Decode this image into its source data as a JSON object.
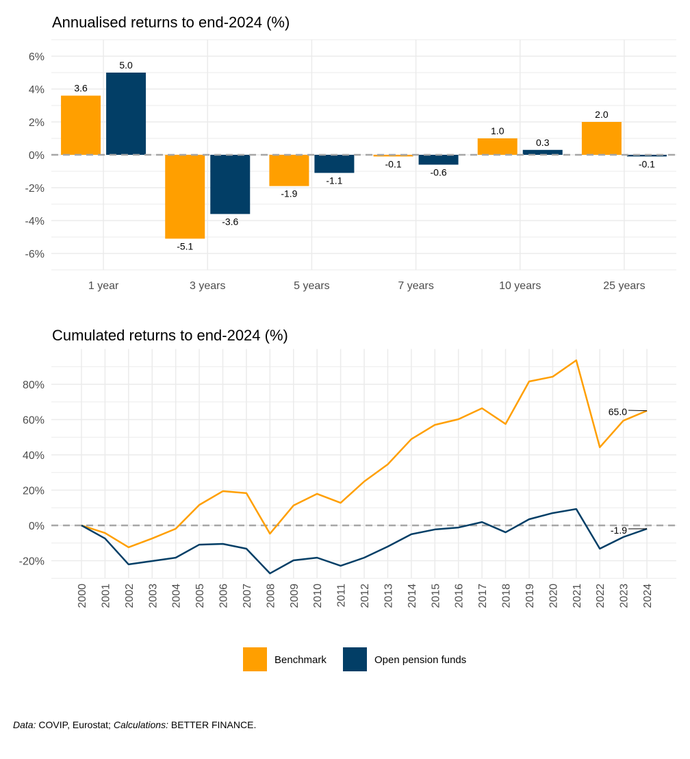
{
  "colors": {
    "benchmark": "#FF9F00",
    "funds": "#023E66",
    "grid": "#EBEBEB",
    "zero": "#A6A6A6"
  },
  "chart_data": [
    {
      "type": "bar",
      "title": "Annualised returns to end-2024 (%)",
      "categories": [
        "1 year",
        "3 years",
        "5 years",
        "7 years",
        "10 years",
        "25 years"
      ],
      "series": [
        {
          "name": "Benchmark",
          "values": [
            3.6,
            -5.1,
            -1.9,
            -0.1,
            1.0,
            2.0
          ]
        },
        {
          "name": "Open pension funds",
          "values": [
            5.0,
            -3.6,
            -1.1,
            -0.6,
            0.3,
            -0.1
          ]
        }
      ],
      "data_labels": [
        [
          "3.6",
          "-5.1",
          "-1.9",
          "-0.1",
          "1.0",
          "2.0"
        ],
        [
          "5.0",
          "-3.6",
          "-1.1",
          "-0.6",
          "0.3",
          "-0.1"
        ]
      ],
      "yticks": [
        "-6%",
        "-4%",
        "-2%",
        "0%",
        "2%",
        "4%",
        "6%"
      ],
      "ytick_values": [
        -6,
        -4,
        -2,
        0,
        2,
        4,
        6
      ],
      "ylim": [
        -7,
        7
      ],
      "grid": true
    },
    {
      "type": "line",
      "title": "Cumulated returns to end-2024 (%)",
      "x": [
        "2000",
        "2001",
        "2002",
        "2003",
        "2004",
        "2005",
        "2006",
        "2007",
        "2008",
        "2009",
        "2010",
        "2011",
        "2012",
        "2013",
        "2014",
        "2015",
        "2016",
        "2017",
        "2018",
        "2019",
        "2020",
        "2021",
        "2022",
        "2023",
        "2024"
      ],
      "series": [
        {
          "name": "Benchmark",
          "values": [
            0,
            -4.3,
            -12.4,
            -7.4,
            -1.9,
            11.6,
            19.4,
            18.3,
            -4.7,
            11.3,
            17.9,
            12.8,
            24.9,
            34.6,
            48.9,
            57.0,
            60.2,
            66.4,
            57.5,
            81.6,
            84.3,
            93.6,
            44.3,
            59.4,
            65.0
          ]
        },
        {
          "name": "Open pension funds",
          "values": [
            0,
            -7.4,
            -22.1,
            -20.2,
            -18.3,
            -10.9,
            -10.5,
            -13.2,
            -27.2,
            -19.8,
            -18.3,
            -22.9,
            -18.3,
            -12.0,
            -5.0,
            -2.3,
            -1.2,
            1.9,
            -3.9,
            3.5,
            7.0,
            9.3,
            -13.2,
            -6.6,
            -1.9
          ]
        }
      ],
      "end_labels": [
        "65.0",
        "-1.9"
      ],
      "yticks": [
        "-20%",
        "0%",
        "20%",
        "40%",
        "60%",
        "80%"
      ],
      "ytick_values": [
        -20,
        0,
        20,
        40,
        60,
        80
      ],
      "ylim": [
        -30,
        100
      ],
      "grid": true,
      "legend_position": "bottom"
    }
  ],
  "legend": [
    "Benchmark",
    "Open pension funds"
  ],
  "caption": {
    "data_label": "Data:",
    "data_text": " COVIP, Eurostat; ",
    "calc_label": "Calculations:",
    "calc_text": " BETTER FINANCE."
  }
}
